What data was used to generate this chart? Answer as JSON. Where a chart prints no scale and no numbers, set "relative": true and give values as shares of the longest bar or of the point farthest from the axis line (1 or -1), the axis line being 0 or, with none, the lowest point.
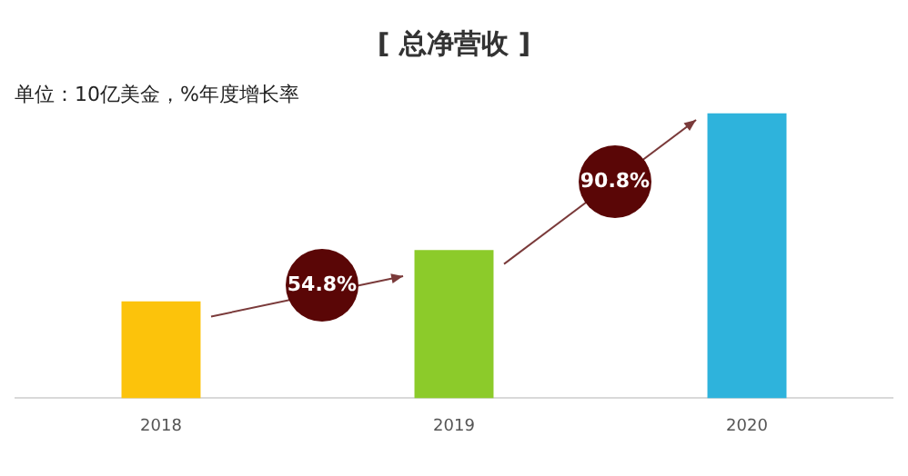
{
  "chart_data": {
    "type": "bar",
    "title": "[ 总净营收 ]",
    "subtitle": "单位：10亿美金，%年度增长率",
    "categories": [
      "2018",
      "2019",
      "2020"
    ],
    "values": [
      0.34,
      0.52,
      1
    ],
    "colors": [
      "#fcc30b",
      "#8ccb2a",
      "#2eb3dc"
    ],
    "relative": true,
    "grid": false,
    "legend": false,
    "annotations": [
      "54.8%",
      "90.8%"
    ]
  }
}
